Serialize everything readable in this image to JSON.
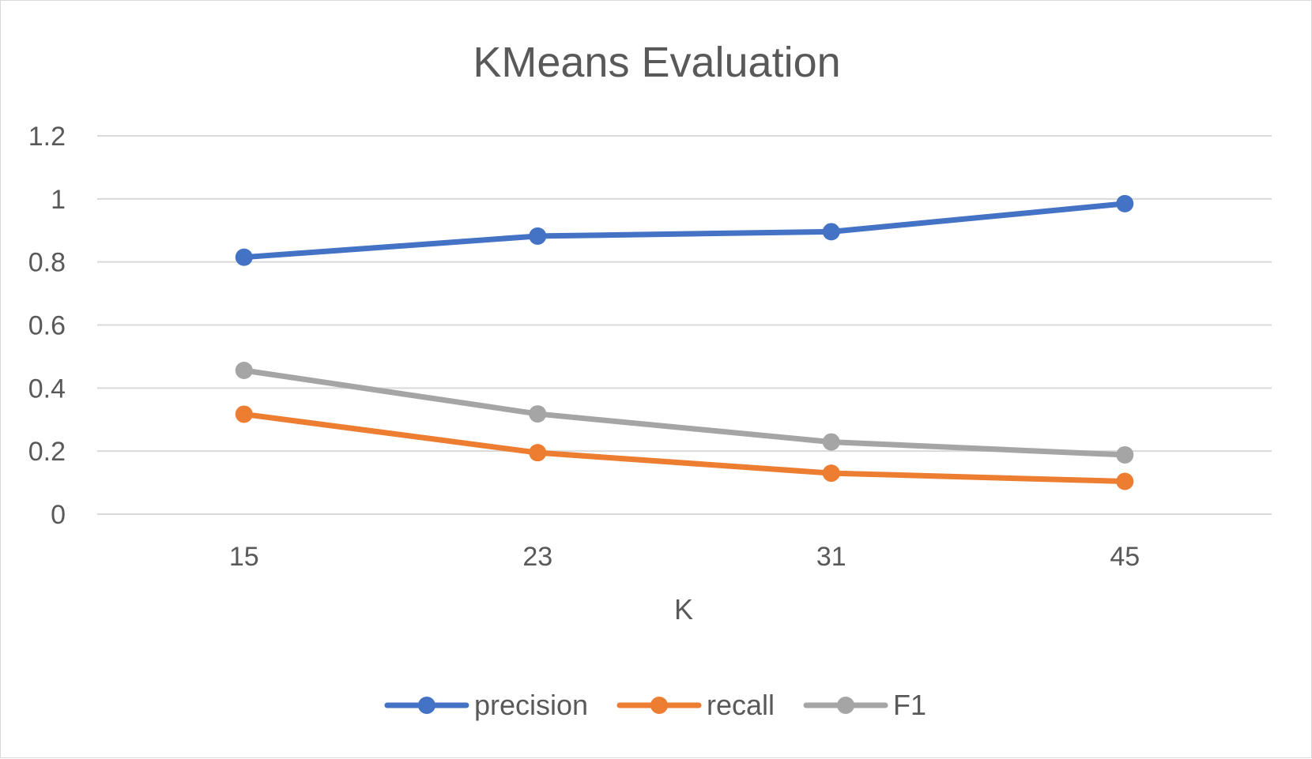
{
  "chart_data": {
    "type": "line",
    "title": "KMeans Evaluation",
    "xlabel": "K",
    "ylabel": "",
    "categories": [
      "15",
      "23",
      "31",
      "45"
    ],
    "ylim": [
      0,
      1.2
    ],
    "yticks": [
      0,
      0.2,
      0.4,
      0.6,
      0.8,
      1,
      1.2
    ],
    "ytick_labels": [
      "0",
      "0.2",
      "0.4",
      "0.6",
      "0.8",
      "1",
      "1.2"
    ],
    "grid": true,
    "legend_position": "bottom",
    "series": [
      {
        "name": "precision",
        "color": "#4472C4",
        "values": [
          0.815,
          0.882,
          0.896,
          0.985
        ]
      },
      {
        "name": "recall",
        "color": "#ED7D31",
        "values": [
          0.317,
          0.195,
          0.13,
          0.104
        ]
      },
      {
        "name": "F1",
        "color": "#A5A5A5",
        "values": [
          0.456,
          0.318,
          0.229,
          0.188
        ]
      }
    ]
  }
}
